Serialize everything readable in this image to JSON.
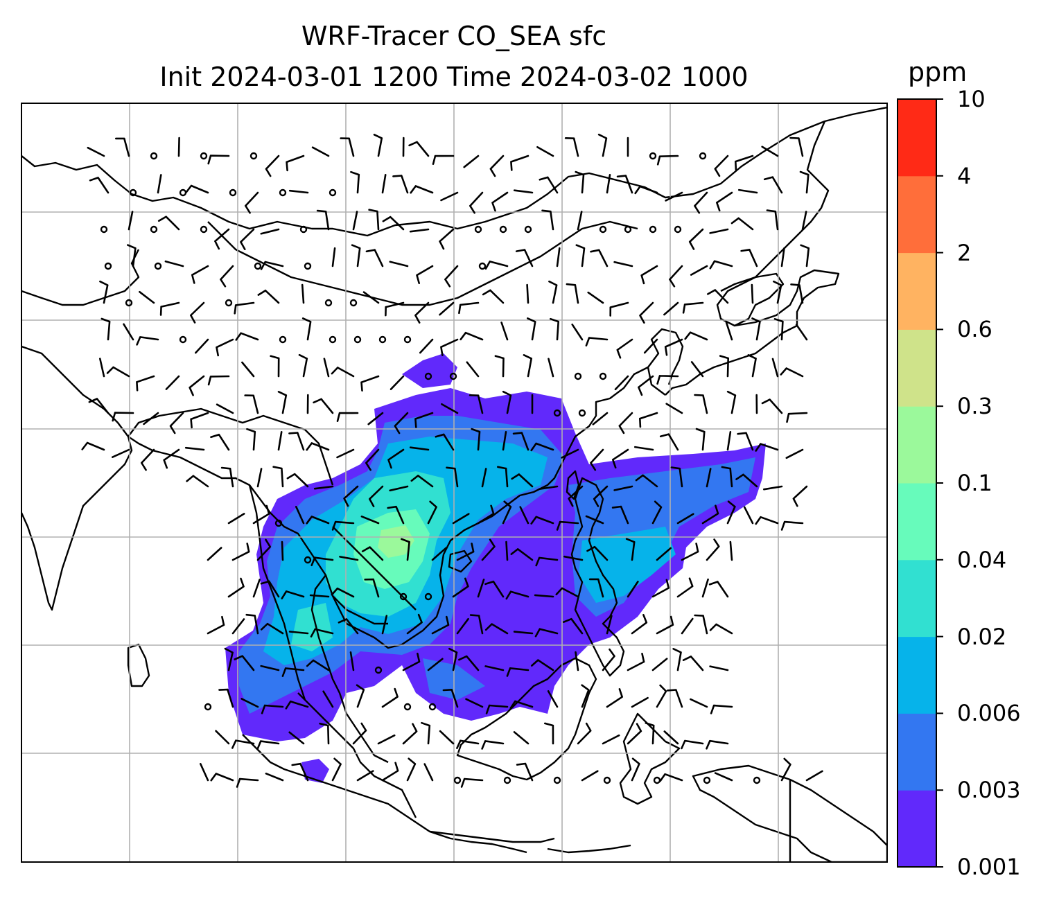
{
  "title": {
    "line1": "WRF-Tracer CO_SEA sfc",
    "line2": "Init 2024-03-01 1200 Time 2024-03-02 1000"
  },
  "colorbar": {
    "unit": "ppm",
    "levels": [
      "0.001",
      "0.003",
      "0.006",
      "0.02",
      "0.04",
      "0.1",
      "0.3",
      "0.6",
      "2",
      "4",
      "10"
    ],
    "colors": [
      "#6129fb",
      "#3377f1",
      "#06b3ea",
      "#31e0d1",
      "#67fbbb",
      "#9bf99b",
      "#cfe38a",
      "#ffb361",
      "#ff6e3a",
      "#ff2a16"
    ]
  },
  "map": {
    "coastline_color": "#000000",
    "gridline_color": "#b0b0b0",
    "wind_barb_color": "#000000"
  }
}
